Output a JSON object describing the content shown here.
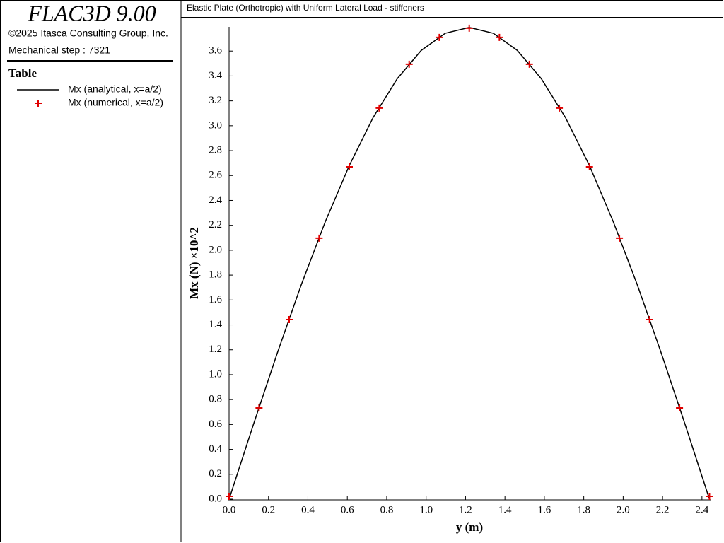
{
  "sidebar": {
    "program": "FLAC3D 9.00",
    "copyright": "©2025 Itasca Consulting Group, Inc.",
    "step": "Mechanical step : 7321",
    "legend_title": "Table"
  },
  "chart_data": {
    "type": "line",
    "title": "Elastic Plate (Orthotropic) with Uniform Lateral Load - stiffeners",
    "xlabel": "y (m)",
    "ylabel": "Mx (N) ×10^2",
    "xlim": [
      0,
      2.44
    ],
    "ylim": [
      0,
      3.8
    ],
    "xticks": [
      {
        "value": 0,
        "label": "0.0"
      },
      {
        "value": 0.2,
        "label": "0.2"
      },
      {
        "value": 0.4,
        "label": "0.4"
      },
      {
        "value": 0.6,
        "label": "0.6"
      },
      {
        "value": 0.8,
        "label": "0.8"
      },
      {
        "value": 1,
        "label": "1.0"
      },
      {
        "value": 1.2,
        "label": "1.2"
      },
      {
        "value": 1.4,
        "label": "1.4"
      },
      {
        "value": 1.6,
        "label": "1.6"
      },
      {
        "value": 1.8,
        "label": "1.8"
      },
      {
        "value": 2,
        "label": "2.0"
      },
      {
        "value": 2.2,
        "label": "2.2"
      },
      {
        "value": 2.4,
        "label": "2.4"
      }
    ],
    "yticks": [
      {
        "value": 0,
        "label": "0.0"
      },
      {
        "value": 0.2,
        "label": "0.2"
      },
      {
        "value": 0.4,
        "label": "0.4"
      },
      {
        "value": 0.6,
        "label": "0.6"
      },
      {
        "value": 0.8,
        "label": "0.8"
      },
      {
        "value": 1,
        "label": "1.0"
      },
      {
        "value": 1.2,
        "label": "1.2"
      },
      {
        "value": 1.4,
        "label": "1.4"
      },
      {
        "value": 1.6,
        "label": "1.6"
      },
      {
        "value": 1.8,
        "label": "1.8"
      },
      {
        "value": 2,
        "label": "2.0"
      },
      {
        "value": 2.2,
        "label": "2.2"
      },
      {
        "value": 2.4,
        "label": "2.4"
      },
      {
        "value": 2.6,
        "label": "2.6"
      },
      {
        "value": 2.8,
        "label": "2.8"
      },
      {
        "value": 3,
        "label": "3.0"
      },
      {
        "value": 3.2,
        "label": "3.2"
      },
      {
        "value": 3.4,
        "label": "3.4"
      },
      {
        "value": 3.6,
        "label": "3.6"
      }
    ],
    "series": [
      {
        "name": "Mx (analytical, x=a/2)",
        "type": "line",
        "color": "#000000",
        "x": [
          0,
          0.122,
          0.244,
          0.366,
          0.488,
          0.61,
          0.731,
          0.853,
          0.975,
          1.097,
          1.219,
          1.341,
          1.463,
          1.585,
          1.707,
          1.829,
          1.95,
          2.072,
          2.194,
          2.316,
          2.438
        ],
        "values": [
          0,
          0.593,
          1.171,
          1.721,
          2.228,
          2.68,
          3.066,
          3.377,
          3.605,
          3.743,
          3.79,
          3.743,
          3.605,
          3.377,
          3.066,
          2.68,
          2.228,
          1.721,
          1.171,
          0.593,
          0
        ]
      },
      {
        "name": "Mx (numerical, x=a/2)",
        "type": "scatter",
        "color": "#e00000",
        "x": [
          0,
          0.152,
          0.305,
          0.457,
          0.61,
          0.762,
          0.914,
          1.067,
          1.219,
          1.372,
          1.524,
          1.676,
          1.829,
          1.981,
          2.134,
          2.286,
          2.438
        ],
        "values": [
          0.023,
          0.733,
          1.443,
          2.097,
          2.67,
          3.142,
          3.494,
          3.71,
          3.784,
          3.71,
          3.494,
          3.142,
          2.67,
          2.097,
          1.443,
          0.733,
          0.023
        ]
      }
    ]
  }
}
